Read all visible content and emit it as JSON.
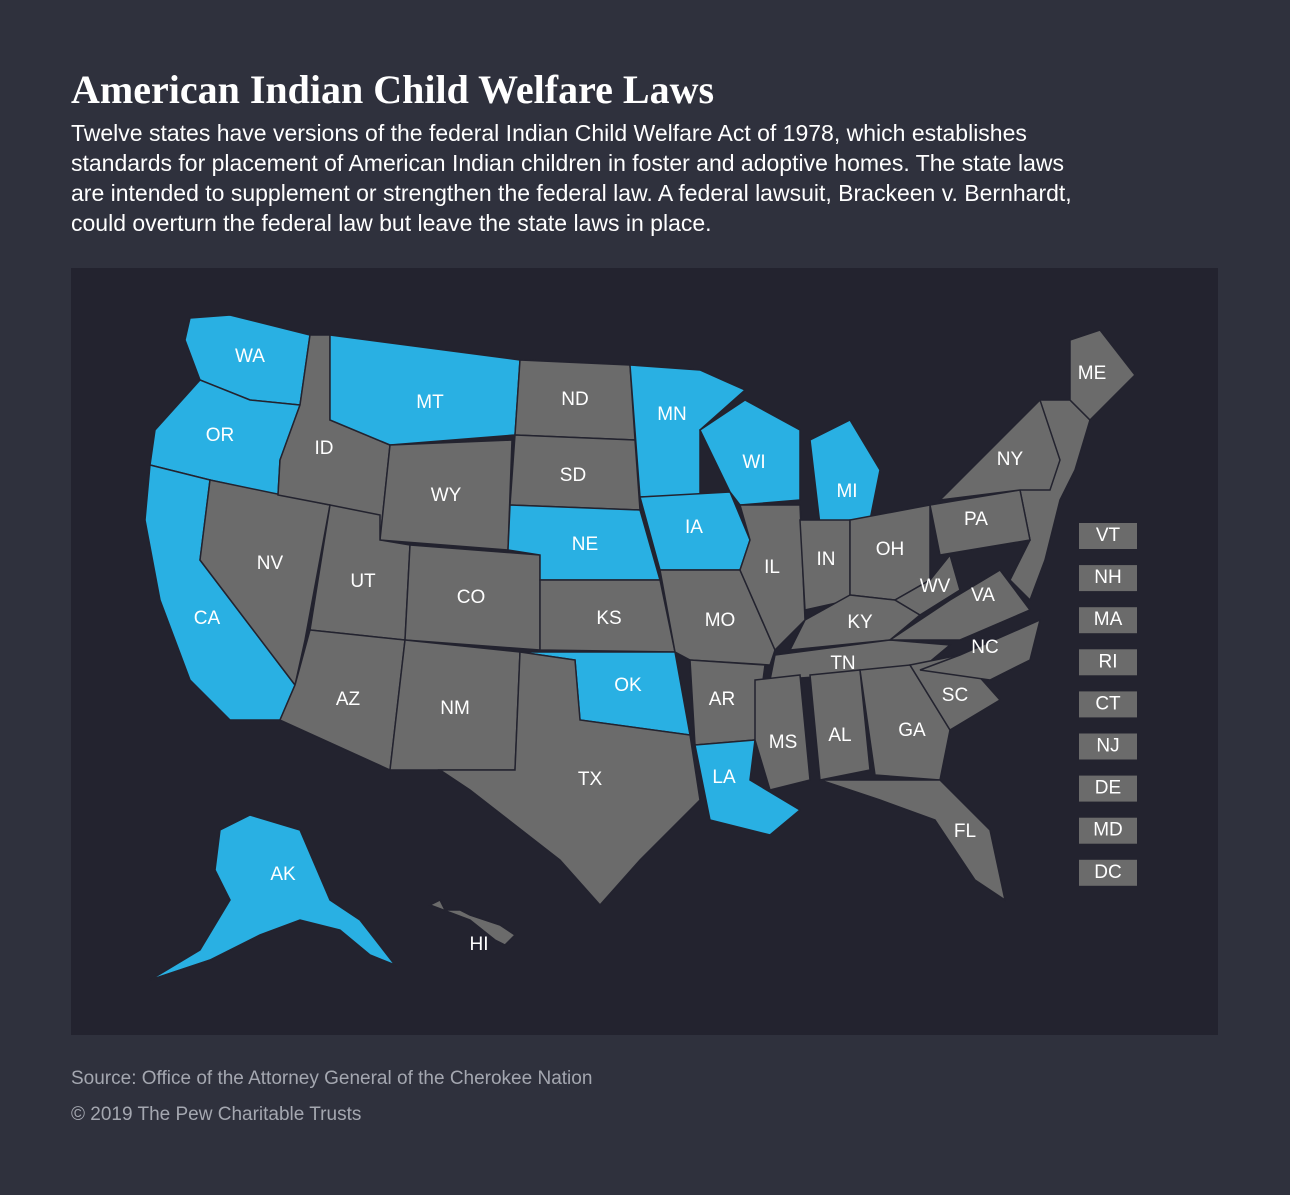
{
  "header": {
    "title": "American Indian Child Welfare Laws",
    "subtitle_lines": [
      "Twelve states have versions of the federal Indian Child Welfare Act of 1978, which establishes",
      "standards for placement of American Indian children in foster and adoptive homes. The state laws",
      "are intended to supplement or strengthen the federal law. A federal lawsuit, Brackeen v. Bernhardt,",
      "could overturn the federal law but leave the state laws in place."
    ]
  },
  "map": {
    "colors": {
      "highlighted": "#29b0e3",
      "other": "#6b6b6b"
    },
    "states": [
      {
        "label": "WA",
        "highlighted": true
      },
      {
        "label": "OR",
        "highlighted": true
      },
      {
        "label": "CA",
        "highlighted": true
      },
      {
        "label": "NV",
        "highlighted": false
      },
      {
        "label": "ID",
        "highlighted": false
      },
      {
        "label": "MT",
        "highlighted": true
      },
      {
        "label": "WY",
        "highlighted": false
      },
      {
        "label": "UT",
        "highlighted": false
      },
      {
        "label": "CO",
        "highlighted": false
      },
      {
        "label": "AZ",
        "highlighted": false
      },
      {
        "label": "NM",
        "highlighted": false
      },
      {
        "label": "ND",
        "highlighted": false
      },
      {
        "label": "SD",
        "highlighted": false
      },
      {
        "label": "NE",
        "highlighted": true
      },
      {
        "label": "KS",
        "highlighted": false
      },
      {
        "label": "OK",
        "highlighted": true
      },
      {
        "label": "TX",
        "highlighted": false
      },
      {
        "label": "MN",
        "highlighted": true
      },
      {
        "label": "IA",
        "highlighted": true
      },
      {
        "label": "MO",
        "highlighted": false
      },
      {
        "label": "AR",
        "highlighted": false
      },
      {
        "label": "LA",
        "highlighted": true
      },
      {
        "label": "WI",
        "highlighted": true
      },
      {
        "label": "MI",
        "highlighted": true
      },
      {
        "label": "IL",
        "highlighted": false
      },
      {
        "label": "IN",
        "highlighted": false
      },
      {
        "label": "OH",
        "highlighted": false
      },
      {
        "label": "KY",
        "highlighted": false
      },
      {
        "label": "TN",
        "highlighted": false
      },
      {
        "label": "MS",
        "highlighted": false
      },
      {
        "label": "AL",
        "highlighted": false
      },
      {
        "label": "GA",
        "highlighted": false
      },
      {
        "label": "FL",
        "highlighted": false
      },
      {
        "label": "SC",
        "highlighted": false
      },
      {
        "label": "NC",
        "highlighted": false
      },
      {
        "label": "VA",
        "highlighted": false
      },
      {
        "label": "WV",
        "highlighted": false
      },
      {
        "label": "PA",
        "highlighted": false
      },
      {
        "label": "NY",
        "highlighted": false
      },
      {
        "label": "ME",
        "highlighted": false
      },
      {
        "label": "AK",
        "highlighted": true
      },
      {
        "label": "HI",
        "highlighted": false
      }
    ],
    "small_states": [
      {
        "label": "VT",
        "highlighted": false
      },
      {
        "label": "NH",
        "highlighted": false
      },
      {
        "label": "MA",
        "highlighted": false
      },
      {
        "label": "RI",
        "highlighted": false
      },
      {
        "label": "CT",
        "highlighted": false
      },
      {
        "label": "NJ",
        "highlighted": false
      },
      {
        "label": "DE",
        "highlighted": false
      },
      {
        "label": "MD",
        "highlighted": false
      },
      {
        "label": "DC",
        "highlighted": false
      }
    ]
  },
  "footer": {
    "source": "Source: Office of the Attorney General of the Cherokee Nation",
    "copyright": "© 2019 The Pew Charitable Trusts"
  }
}
